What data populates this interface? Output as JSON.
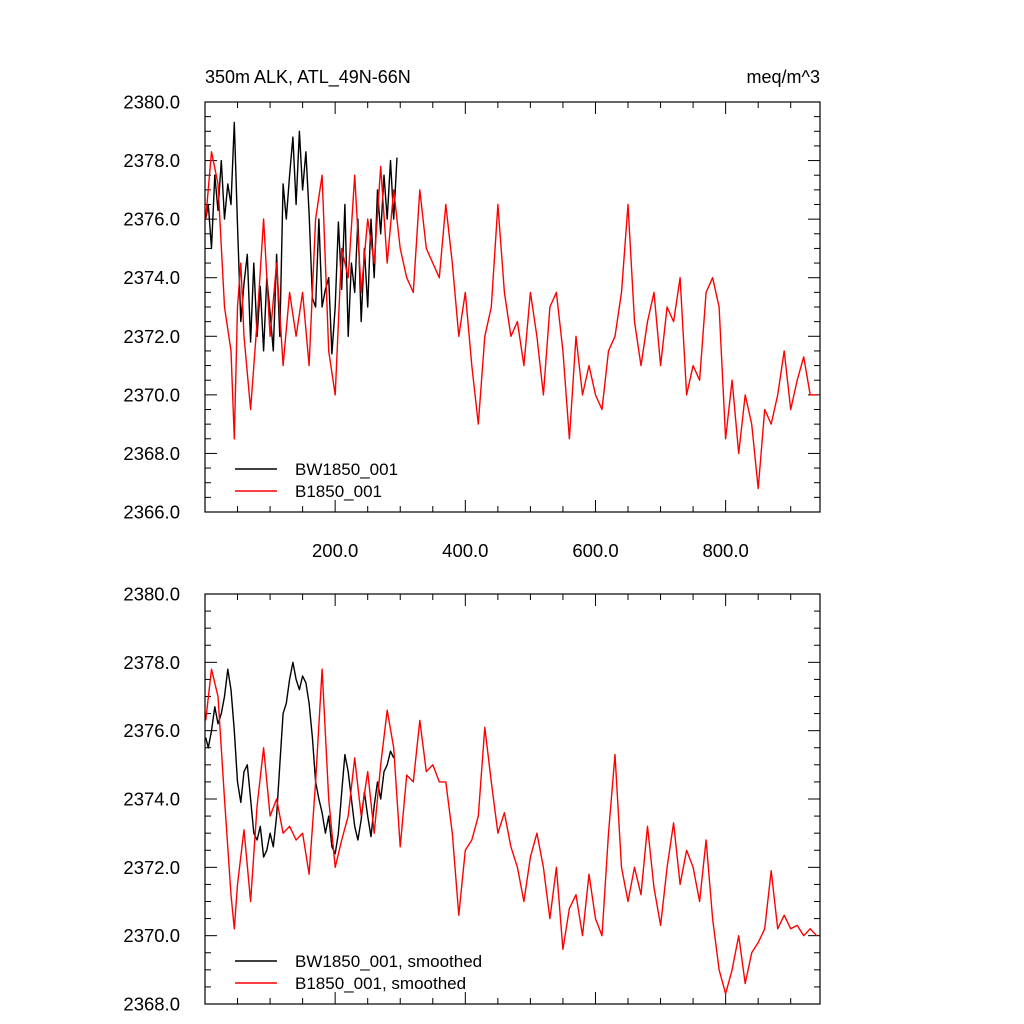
{
  "chart_data": [
    {
      "type": "line",
      "title": "350m ALK, ATL_49N-66N",
      "units": "meq/m^3",
      "xlim": [
        0,
        945
      ],
      "ylim": [
        2366,
        2380
      ],
      "x_ticks": [
        200,
        400,
        600,
        800
      ],
      "x_tick_labels": [
        "200.0",
        "400.0",
        "600.0",
        "800.0"
      ],
      "y_ticks": [
        2366,
        2368,
        2370,
        2372,
        2374,
        2376,
        2378,
        2380
      ],
      "y_tick_labels": [
        "2366.0",
        "2368.0",
        "2370.0",
        "2372.0",
        "2374.0",
        "2376.0",
        "2378.0",
        "2380.0"
      ],
      "legend_position": "bottom-left",
      "series": [
        {
          "name": "BW1850_001",
          "color": "#000000",
          "x": [
            1,
            5,
            10,
            15,
            20,
            25,
            30,
            35,
            40,
            45,
            50,
            55,
            60,
            65,
            70,
            75,
            80,
            85,
            90,
            95,
            100,
            105,
            110,
            115,
            120,
            125,
            130,
            135,
            140,
            145,
            150,
            155,
            160,
            165,
            170,
            175,
            180,
            185,
            190,
            195,
            200,
            205,
            210,
            215,
            220,
            225,
            230,
            235,
            240,
            245,
            250,
            255,
            260,
            265,
            270,
            275,
            280,
            285,
            290,
            295
          ],
          "values": [
            2376.0,
            2376.5,
            2375.0,
            2377.5,
            2376.3,
            2378.0,
            2376.0,
            2377.2,
            2376.5,
            2379.3,
            2375.8,
            2372.5,
            2373.8,
            2374.8,
            2371.8,
            2374.5,
            2372.0,
            2373.7,
            2371.5,
            2374.0,
            2372.8,
            2371.5,
            2374.8,
            2372.0,
            2377.2,
            2376.0,
            2377.5,
            2378.8,
            2376.5,
            2379.0,
            2377.0,
            2378.3,
            2376.2,
            2373.3,
            2373.0,
            2376.0,
            2373.0,
            2373.6,
            2374.0,
            2371.4,
            2373.0,
            2375.9,
            2373.6,
            2376.5,
            2372.0,
            2374.5,
            2373.5,
            2376.0,
            2372.5,
            2375.0,
            2373.0,
            2376.0,
            2374.0,
            2377.0,
            2375.5,
            2377.5,
            2376.0,
            2378.0,
            2376.0,
            2378.1
          ]
        },
        {
          "name": "B1850_001",
          "color": "#ff0000",
          "x": [
            1,
            10,
            20,
            30,
            40,
            45,
            50,
            55,
            60,
            70,
            80,
            90,
            100,
            110,
            120,
            130,
            140,
            150,
            160,
            170,
            180,
            190,
            200,
            210,
            220,
            230,
            240,
            250,
            260,
            270,
            280,
            290,
            300,
            310,
            320,
            330,
            340,
            350,
            360,
            370,
            380,
            390,
            400,
            410,
            420,
            430,
            440,
            450,
            460,
            470,
            480,
            490,
            500,
            510,
            520,
            530,
            540,
            550,
            560,
            570,
            580,
            590,
            600,
            610,
            620,
            630,
            640,
            650,
            660,
            670,
            680,
            690,
            700,
            710,
            720,
            730,
            740,
            750,
            760,
            770,
            780,
            790,
            800,
            810,
            820,
            830,
            840,
            850,
            860,
            870,
            880,
            890,
            900,
            910,
            920,
            930,
            940
          ],
          "values": [
            2376.0,
            2378.3,
            2377.2,
            2373.0,
            2371.5,
            2368.5,
            2373.0,
            2374.5,
            2372.0,
            2369.5,
            2372.5,
            2376.0,
            2372.0,
            2374.5,
            2371.0,
            2373.5,
            2372.0,
            2373.5,
            2371.0,
            2376.0,
            2377.5,
            2371.5,
            2370.0,
            2375.0,
            2374.0,
            2377.5,
            2373.5,
            2376.0,
            2374.5,
            2377.8,
            2374.5,
            2377.0,
            2375.0,
            2374.0,
            2373.5,
            2377.0,
            2375.0,
            2374.5,
            2374.0,
            2376.5,
            2374.5,
            2372.0,
            2373.5,
            2371.0,
            2369.0,
            2372.0,
            2373.0,
            2376.5,
            2373.5,
            2372.0,
            2372.5,
            2371.0,
            2373.5,
            2372.0,
            2370.0,
            2373.0,
            2373.5,
            2371.5,
            2368.5,
            2372.0,
            2370.0,
            2371.0,
            2370.0,
            2369.5,
            2371.5,
            2372.0,
            2373.5,
            2376.5,
            2372.5,
            2371.0,
            2372.5,
            2373.5,
            2371.0,
            2373.0,
            2372.5,
            2374.0,
            2370.0,
            2371.0,
            2370.5,
            2373.5,
            2374.0,
            2373.0,
            2368.5,
            2370.5,
            2368.0,
            2370.0,
            2369.0,
            2366.8,
            2369.5,
            2369.0,
            2370.0,
            2371.5,
            2369.5,
            2370.5,
            2371.3,
            2370.0,
            2370.0
          ]
        }
      ]
    },
    {
      "type": "line",
      "xlim": [
        0,
        945
      ],
      "ylim": [
        2368,
        2380
      ],
      "y_ticks": [
        2368,
        2370,
        2372,
        2374,
        2376,
        2378,
        2380
      ],
      "y_tick_labels": [
        "2368.0",
        "2370.0",
        "2372.0",
        "2374.0",
        "2376.0",
        "2378.0",
        "2380.0"
      ],
      "legend_position": "bottom-left",
      "series": [
        {
          "name": "BW1850_001, smoothed",
          "color": "#000000",
          "x": [
            1,
            5,
            10,
            15,
            20,
            25,
            30,
            35,
            40,
            45,
            50,
            55,
            60,
            65,
            70,
            75,
            80,
            85,
            90,
            95,
            100,
            105,
            110,
            115,
            120,
            125,
            130,
            135,
            140,
            145,
            150,
            155,
            160,
            165,
            170,
            175,
            180,
            185,
            190,
            195,
            200,
            205,
            210,
            215,
            220,
            225,
            230,
            235,
            240,
            245,
            250,
            255,
            260,
            265,
            270,
            275,
            280,
            285,
            290
          ],
          "values": [
            2375.8,
            2375.5,
            2376.0,
            2376.7,
            2376.2,
            2376.5,
            2377.0,
            2377.8,
            2377.2,
            2376.0,
            2374.5,
            2373.9,
            2374.8,
            2375.0,
            2374.0,
            2373.0,
            2372.8,
            2373.2,
            2372.3,
            2372.5,
            2373.0,
            2372.6,
            2373.5,
            2375.0,
            2376.5,
            2376.8,
            2377.5,
            2378.0,
            2377.5,
            2377.2,
            2377.6,
            2377.4,
            2376.8,
            2375.8,
            2374.5,
            2374.0,
            2373.6,
            2373.0,
            2373.5,
            2372.6,
            2372.4,
            2373.0,
            2374.2,
            2375.3,
            2374.8,
            2374.0,
            2373.2,
            2372.8,
            2373.4,
            2374.2,
            2373.5,
            2372.9,
            2373.8,
            2374.5,
            2374.0,
            2374.8,
            2375.0,
            2375.4,
            2375.2
          ]
        },
        {
          "name": "B1850_001, smoothed",
          "color": "#ff0000",
          "x": [
            1,
            10,
            20,
            30,
            40,
            45,
            50,
            60,
            70,
            80,
            90,
            100,
            110,
            120,
            130,
            140,
            150,
            160,
            170,
            180,
            190,
            200,
            210,
            220,
            230,
            240,
            250,
            260,
            270,
            280,
            290,
            300,
            310,
            320,
            330,
            340,
            350,
            360,
            370,
            380,
            390,
            400,
            410,
            420,
            430,
            440,
            450,
            460,
            470,
            480,
            490,
            500,
            510,
            520,
            530,
            540,
            550,
            560,
            570,
            580,
            590,
            600,
            610,
            620,
            630,
            640,
            650,
            660,
            670,
            680,
            690,
            700,
            710,
            720,
            730,
            740,
            750,
            760,
            770,
            780,
            790,
            800,
            810,
            820,
            830,
            840,
            850,
            860,
            870,
            880,
            890,
            900,
            910,
            920,
            930,
            940
          ],
          "values": [
            2376.3,
            2377.8,
            2377.0,
            2374.0,
            2371.2,
            2370.2,
            2371.5,
            2373.1,
            2371.0,
            2373.8,
            2375.5,
            2373.5,
            2374.0,
            2373.0,
            2373.2,
            2372.8,
            2373.0,
            2371.8,
            2374.5,
            2377.8,
            2374.0,
            2372.0,
            2372.8,
            2373.5,
            2375.2,
            2373.5,
            2374.8,
            2373.0,
            2375.0,
            2376.6,
            2375.5,
            2372.6,
            2374.7,
            2374.5,
            2376.3,
            2374.8,
            2375.0,
            2374.5,
            2374.5,
            2373.0,
            2370.6,
            2372.5,
            2372.8,
            2373.5,
            2376.1,
            2374.5,
            2373.0,
            2373.6,
            2372.6,
            2372.0,
            2371.0,
            2372.3,
            2373.0,
            2372.0,
            2370.5,
            2372.0,
            2369.6,
            2370.8,
            2371.2,
            2370.0,
            2371.8,
            2370.5,
            2370.0,
            2373.0,
            2375.3,
            2372.0,
            2371.0,
            2372.0,
            2371.2,
            2373.2,
            2371.4,
            2370.3,
            2372.0,
            2373.3,
            2371.5,
            2372.5,
            2372.0,
            2371.0,
            2372.8,
            2370.5,
            2369.0,
            2368.3,
            2369.0,
            2370.0,
            2368.6,
            2369.5,
            2369.8,
            2370.2,
            2371.9,
            2370.2,
            2370.6,
            2370.2,
            2370.3,
            2370.0,
            2370.2,
            2370.0
          ]
        }
      ]
    }
  ]
}
